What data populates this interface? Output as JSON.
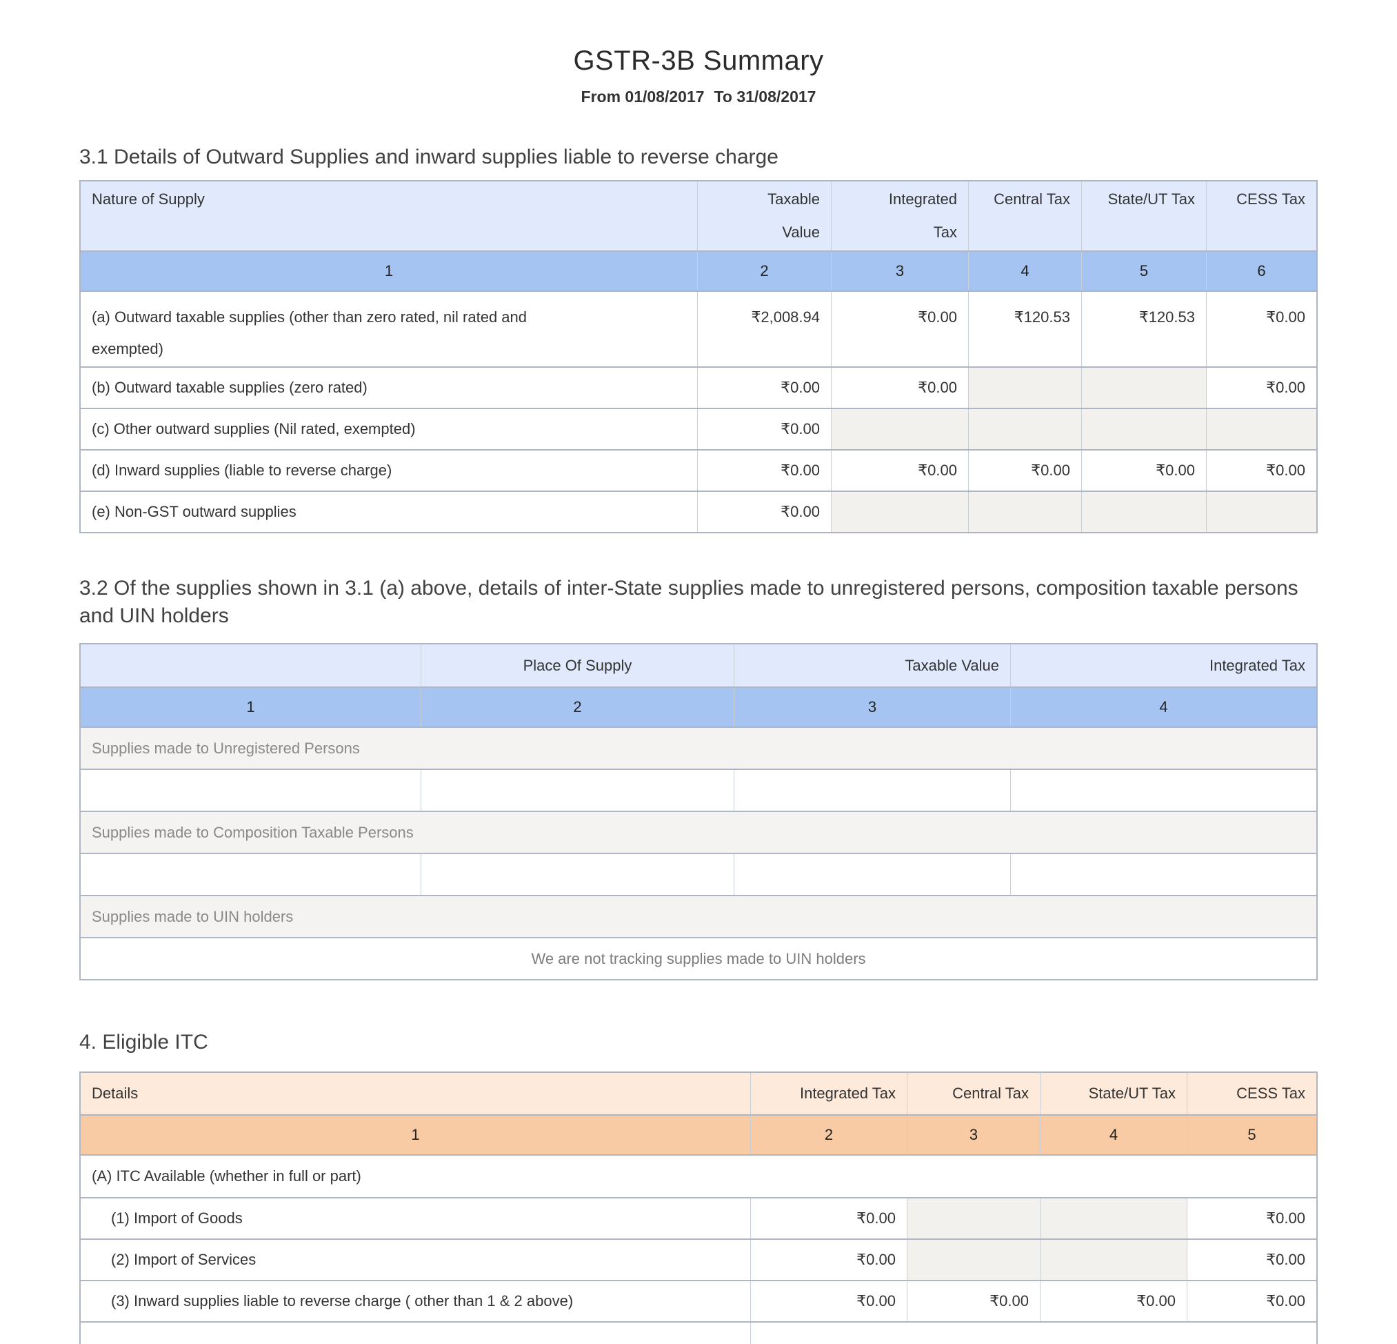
{
  "header": {
    "title": "GSTR-3B Summary",
    "date_from": "From 01/08/2017",
    "date_to": "To 31/08/2017"
  },
  "colors": {
    "table_header_blue": "#e1eafc",
    "number_row_blue": "#a6c4f1",
    "table_header_peach": "#fdeadb",
    "number_row_orange": "#f8cba4",
    "disabled_cell_gray": "#f2f1ee",
    "table_border": "#adb6c2"
  },
  "section31": {
    "heading": "3.1 Details of Outward Supplies and inward supplies liable to reverse charge",
    "columns": [
      "Nature of Supply",
      "Taxable Value",
      "Integrated Tax",
      "Central Tax",
      "State/UT Tax",
      "CESS Tax"
    ],
    "column_numbers": [
      "1",
      "2",
      "3",
      "4",
      "5",
      "6"
    ],
    "rows": [
      {
        "label": "(a) Outward taxable supplies (other than zero rated, nil rated and exempted)",
        "taxable_value": "₹2,008.94",
        "integrated_tax": "₹0.00",
        "central_tax": "₹120.53",
        "state_ut_tax": "₹120.53",
        "cess_tax": "₹0.00"
      },
      {
        "label": "(b) Outward taxable supplies (zero rated)",
        "taxable_value": "₹0.00",
        "integrated_tax": "₹0.00",
        "cess_tax": "₹0.00"
      },
      {
        "label": "(c) Other outward supplies (Nil rated, exempted)",
        "taxable_value": "₹0.00"
      },
      {
        "label": "(d) Inward supplies (liable to reverse charge)",
        "taxable_value": "₹0.00",
        "integrated_tax": "₹0.00",
        "central_tax": "₹0.00",
        "state_ut_tax": "₹0.00",
        "cess_tax": "₹0.00"
      },
      {
        "label": "(e) Non-GST outward supplies",
        "taxable_value": "₹0.00"
      }
    ]
  },
  "section32": {
    "heading": "3.2 Of the supplies shown in 3.1 (a) above, details of inter-State supplies made to unregistered persons, composition taxable persons and UIN holders",
    "columns": [
      "Place Of Supply",
      "Taxable Value",
      "Integrated Tax"
    ],
    "column_numbers": [
      "1",
      "2",
      "3",
      "4"
    ],
    "groups": [
      {
        "label": "Supplies made to Unregistered Persons"
      },
      {
        "label": "Supplies made to Composition Taxable Persons"
      },
      {
        "label": "Supplies made to UIN holders"
      }
    ],
    "uin_message": "We are not tracking supplies made to UIN holders"
  },
  "section4": {
    "heading": "4. Eligible ITC",
    "columns": [
      "Details",
      "Integrated Tax",
      "Central Tax",
      "State/UT Tax",
      "CESS Tax"
    ],
    "column_numbers": [
      "1",
      "2",
      "3",
      "4",
      "5"
    ],
    "group_a_label": "(A) ITC Available (whether in full or part)",
    "rows": [
      {
        "label": "(1) Import of Goods",
        "integrated_tax": "₹0.00",
        "cess_tax": "₹0.00"
      },
      {
        "label": "(2) Import of Services",
        "integrated_tax": "₹0.00",
        "cess_tax": "₹0.00"
      },
      {
        "label": "(3) Inward supplies liable to reverse charge ( other than 1 & 2 above)",
        "integrated_tax": "₹0.00",
        "central_tax": "₹0.00",
        "state_ut_tax": "₹0.00",
        "cess_tax": "₹0.00"
      }
    ]
  }
}
